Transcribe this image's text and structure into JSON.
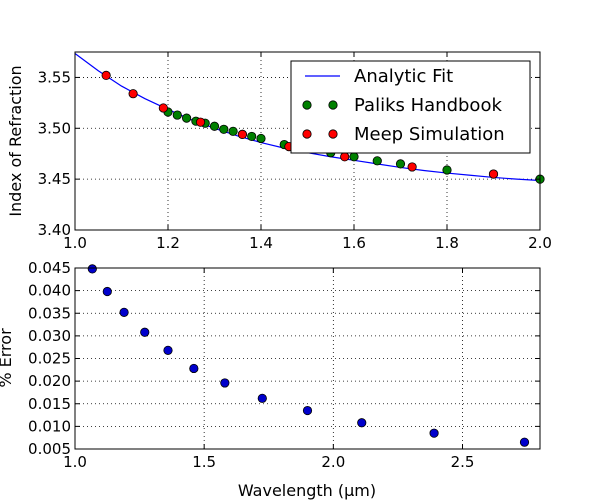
{
  "colors": {
    "analytic": "#0000ff",
    "paliks": "#008000",
    "meep": "#ff0000",
    "error": "#0000cc",
    "grid": "#000000",
    "axes": "#000000",
    "background": "#ffffff"
  },
  "chart_data": [
    {
      "type": "line",
      "xlabel": "",
      "ylabel": "Index of Refraction",
      "xlim": [
        1.0,
        2.0
      ],
      "ylim": [
        3.4,
        3.575
      ],
      "xticks": [
        1.0,
        1.2,
        1.4,
        1.6,
        1.8,
        2.0
      ],
      "xtick_labels": [
        "1.0",
        "1.2",
        "1.4",
        "1.6",
        "1.8",
        "2.0"
      ],
      "yticks": [
        3.4,
        3.45,
        3.5,
        3.55
      ],
      "ytick_labels": [
        "3.40",
        "3.45",
        "3.50",
        "3.55"
      ],
      "grid": true,
      "legend_position": "top-right",
      "series": [
        {
          "name": "Analytic Fit",
          "kind": "line",
          "x": [
            1.0,
            1.05,
            1.1,
            1.15,
            1.2,
            1.25,
            1.3,
            1.35,
            1.4,
            1.45,
            1.5,
            1.55,
            1.6,
            1.65,
            1.7,
            1.75,
            1.8,
            1.85,
            1.9,
            1.95,
            2.0
          ],
          "y": [
            3.5735,
            3.5566,
            3.5415,
            3.5292,
            3.5185,
            3.5085,
            3.5,
            3.4925,
            3.486,
            3.4805,
            3.476,
            3.472,
            3.4685,
            3.465,
            3.4615,
            3.4585,
            3.456,
            3.4538,
            3.4517,
            3.45,
            3.4487
          ]
        },
        {
          "name": "Paliks Handbook",
          "kind": "marker",
          "x": [
            1.2,
            1.22,
            1.24,
            1.26,
            1.28,
            1.3,
            1.32,
            1.34,
            1.36,
            1.38,
            1.4,
            1.45,
            1.5,
            1.55,
            1.6,
            1.65,
            1.7,
            1.8,
            1.9,
            2.0
          ],
          "y": [
            3.516,
            3.513,
            3.51,
            3.507,
            3.505,
            3.502,
            3.499,
            3.497,
            3.494,
            3.492,
            3.49,
            3.484,
            3.48,
            3.476,
            3.472,
            3.468,
            3.465,
            3.459,
            3.455,
            3.45
          ]
        },
        {
          "name": "Meep Simulation",
          "kind": "marker",
          "x": [
            1.067,
            1.125,
            1.19,
            1.27,
            1.36,
            1.46,
            1.58,
            1.725,
            1.9
          ],
          "y": [
            3.552,
            3.534,
            3.52,
            3.506,
            3.494,
            3.482,
            3.472,
            3.462,
            3.455
          ]
        }
      ]
    },
    {
      "type": "scatter",
      "xlabel": "Wavelength (μm)",
      "ylabel": "% Error",
      "xlim": [
        1.0,
        2.8
      ],
      "ylim": [
        0.005,
        0.045
      ],
      "xticks": [
        1.0,
        1.5,
        2.0,
        2.5
      ],
      "xtick_labels": [
        "1.0",
        "1.5",
        "2.0",
        "2.5"
      ],
      "yticks": [
        0.005,
        0.01,
        0.015,
        0.02,
        0.025,
        0.03,
        0.035,
        0.04,
        0.045
      ],
      "ytick_labels": [
        "0.005",
        "0.010",
        "0.015",
        "0.020",
        "0.025",
        "0.030",
        "0.035",
        "0.040",
        "0.045"
      ],
      "grid": true,
      "series": [
        {
          "x": [
            1.067,
            1.125,
            1.19,
            1.27,
            1.36,
            1.46,
            1.58,
            1.725,
            1.9,
            2.11,
            2.39,
            2.74
          ],
          "y": [
            0.0448,
            0.0398,
            0.0352,
            0.0308,
            0.0268,
            0.0228,
            0.0196,
            0.0162,
            0.0135,
            0.0108,
            0.0085,
            0.0065
          ]
        }
      ]
    }
  ]
}
